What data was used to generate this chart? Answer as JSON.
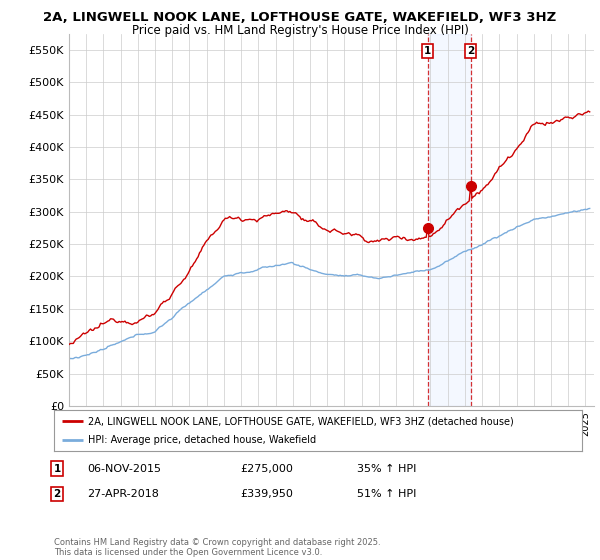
{
  "title1": "2A, LINGWELL NOOK LANE, LOFTHOUSE GATE, WAKEFIELD, WF3 3HZ",
  "title2": "Price paid vs. HM Land Registry's House Price Index (HPI)",
  "ylabel_ticks": [
    "£0",
    "£50K",
    "£100K",
    "£150K",
    "£200K",
    "£250K",
    "£300K",
    "£350K",
    "£400K",
    "£450K",
    "£500K",
    "£550K"
  ],
  "ytick_values": [
    0,
    50000,
    100000,
    150000,
    200000,
    250000,
    300000,
    350000,
    400000,
    450000,
    500000,
    550000
  ],
  "ylim": [
    0,
    575000
  ],
  "xlim_start": 1995.0,
  "xlim_end": 2025.5,
  "red_line_color": "#cc0000",
  "blue_line_color": "#7aacdc",
  "background_color": "#ffffff",
  "grid_color": "#cccccc",
  "transaction1": {
    "date_num": 2015.85,
    "price": 275000,
    "label": "1"
  },
  "transaction2": {
    "date_num": 2018.33,
    "price": 339950,
    "label": "2"
  },
  "legend_line1": "2A, LINGWELL NOOK LANE, LOFTHOUSE GATE, WAKEFIELD, WF3 3HZ (detached house)",
  "legend_line2": "HPI: Average price, detached house, Wakefield",
  "footnote": "Contains HM Land Registry data © Crown copyright and database right 2025.\nThis data is licensed under the Open Government Licence v3.0."
}
